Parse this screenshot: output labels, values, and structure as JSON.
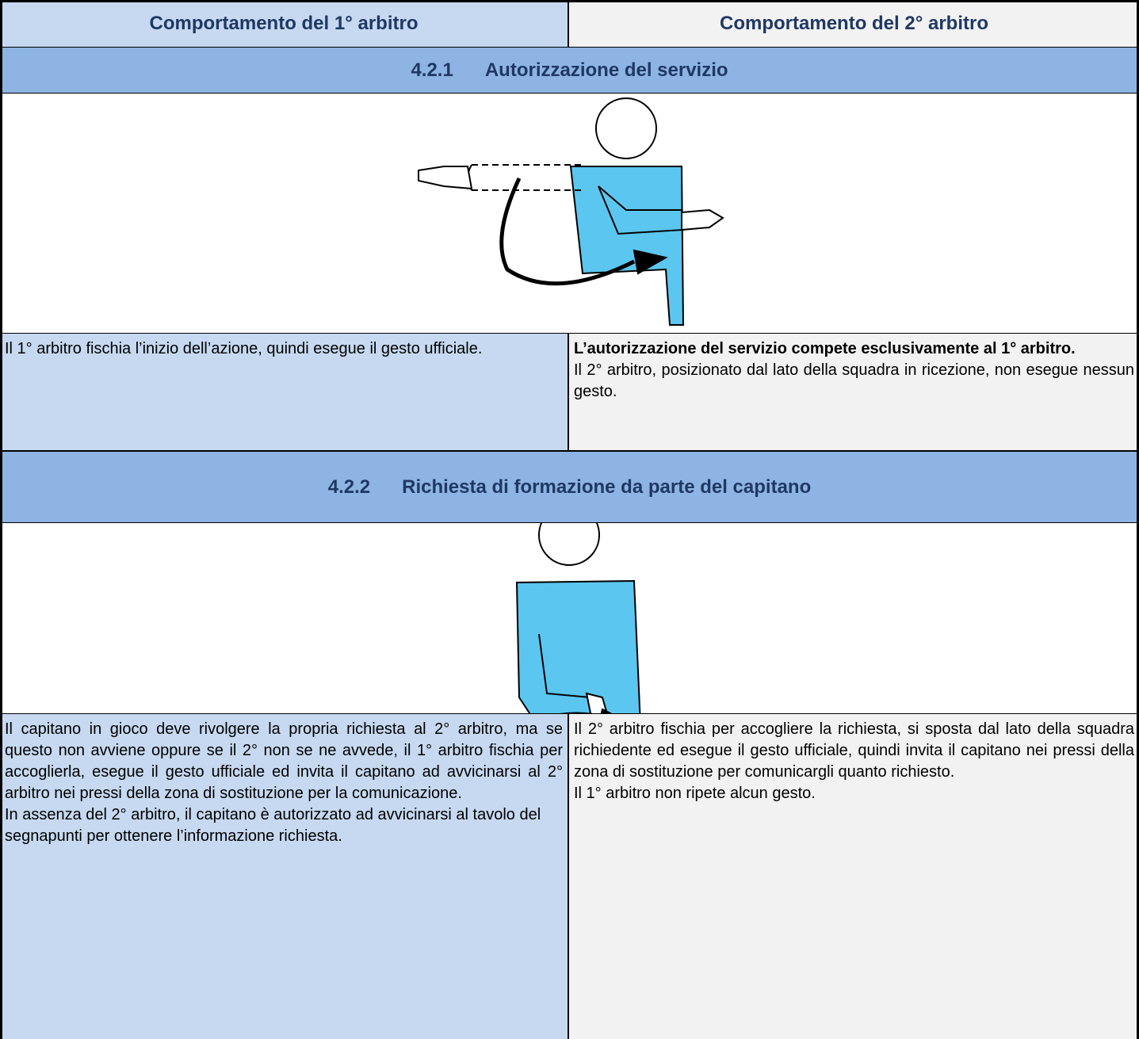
{
  "header": {
    "col1": "Comportamento del 1° arbitro",
    "col2": "Comportamento del 2° arbitro"
  },
  "sections": [
    {
      "number": "4.2.1",
      "title": "Autorizzazione del servizio",
      "first": {
        "paragraphs": [
          "Il 1° arbitro fischia l’inizio dell’azione, quindi esegue il gesto ufficiale."
        ]
      },
      "second": {
        "bold": "L’autorizzazione del servizio compete esclusivamente al 1° arbitro.",
        "paragraphs": [
          "Il 2° arbitro, posizionato dal lato della squadra in ricezione, non esegue nessun gesto."
        ]
      }
    },
    {
      "number": "4.2.2",
      "title": "Richiesta di formazione da parte del capitano",
      "first": {
        "paragraphs": [
          "Il capitano in gioco deve rivolgere la propria richiesta al 2° arbitro, ma se questo non avviene oppure se il 2° non se ne avvede, il 1° arbitro fischia per accoglierla, esegue il gesto ufficiale ed invita il capitano ad avvicinarsi al 2° arbitro nei pressi della zona di sostituzione per la comunicazione.",
          "In assenza del 2° arbitro, il capitano è autorizzato ad avvicinarsi al tavolo del segnapunti per ottenere l’informazione richiesta."
        ]
      },
      "second": {
        "paragraphs": [
          "Il 2° arbitro fischia per accogliere la richiesta, si sposta dal lato della squadra richiedente ed esegue il gesto ufficiale, quindi invita il capitano nei pressi della zona di sostituzione per comunicargli quanto richiesto.",
          "Il 1° arbitro non ripete alcun gesto."
        ]
      }
    }
  ]
}
